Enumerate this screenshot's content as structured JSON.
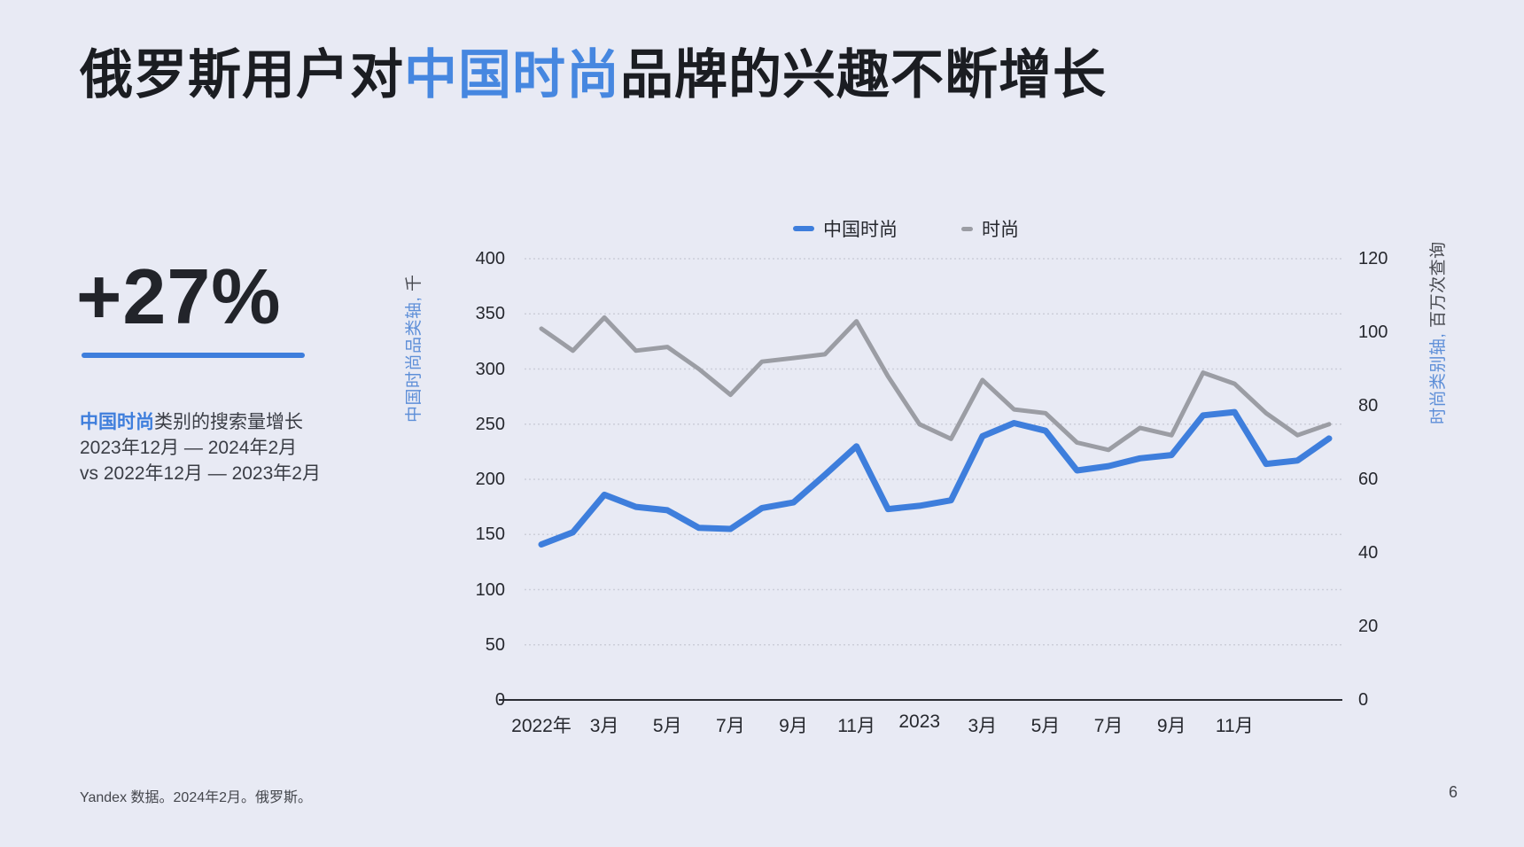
{
  "colors": {
    "background": "#E8EAF4",
    "accent_blue": "#3E7EDC",
    "title_highlight_blue": "#4687E0",
    "series_gray": "#9B9DA4",
    "gridline": "#CCCED9",
    "axis_line": "#2B2D33",
    "text_dark": "#1B1D22"
  },
  "title": {
    "prefix": "俄罗斯用户对",
    "highlight": "中国时尚",
    "suffix": "品牌的兴趣不断增长"
  },
  "stat": {
    "value": "+27%",
    "desc_highlight": "中国时尚",
    "desc_text": "类别的搜索量增长",
    "period_line": "2023年12月 — 2024年2月",
    "vs_line": "vs 2022年12月 — 2023年2月"
  },
  "footer": {
    "source": "Yandex 数据。2024年2月。俄罗斯。",
    "page_number": "6"
  },
  "chart_data": {
    "type": "line",
    "n_points": 26,
    "x_range_note": "monthly points from Jan 2022 to Feb 2024",
    "x_tick_labels": [
      "2022年",
      "3月",
      "5月",
      "7月",
      "9月",
      "11月",
      "2023",
      "3月",
      "5月",
      "7月",
      "9月",
      "11月"
    ],
    "x_tick_month_index": [
      0,
      2,
      4,
      6,
      8,
      10,
      12,
      14,
      16,
      18,
      20,
      22
    ],
    "left_axis": {
      "label": "中国时尚品类轴,",
      "unit": "千",
      "ticks": [
        0,
        50,
        100,
        150,
        200,
        250,
        300,
        350,
        400
      ],
      "max": 400
    },
    "right_axis": {
      "label": "时尚类别轴,",
      "unit": "百万次查询",
      "ticks": [
        0,
        20,
        40,
        60,
        80,
        100,
        120
      ],
      "max": 120
    },
    "legend": [
      {
        "label": "中国时尚",
        "color": "#3E7EDC"
      },
      {
        "label": "时尚",
        "color": "#9B9DA4"
      }
    ],
    "series": [
      {
        "name": "中国时尚",
        "axis": "left",
        "color": "#3E7EDC",
        "stroke_width": 7,
        "values": [
          141,
          152,
          186,
          175,
          172,
          156,
          155,
          174,
          179,
          204,
          230,
          173,
          176,
          181,
          239,
          251,
          244,
          208,
          212,
          219,
          222,
          258,
          261,
          214,
          217,
          237
        ]
      },
      {
        "name": "时尚",
        "axis": "right",
        "color": "#9B9DA4",
        "stroke_width": 5,
        "values": [
          101,
          95,
          104,
          95,
          96,
          90,
          83,
          92,
          93,
          94,
          103,
          88,
          75,
          71,
          87,
          79,
          78,
          70,
          68,
          74,
          72,
          89,
          86,
          78,
          72,
          75
        ]
      }
    ]
  }
}
